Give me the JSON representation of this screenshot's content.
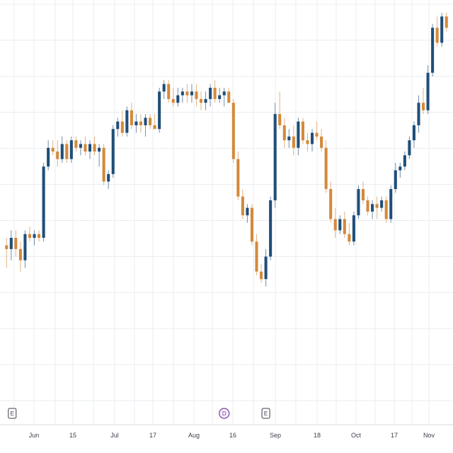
{
  "chart_data": {
    "type": "candlestick",
    "title": "",
    "xlabel": "",
    "ylabel": "",
    "grid": true,
    "x_axis": {
      "tick_labels": [
        "Jun",
        "15",
        "Jul",
        "17",
        "Aug",
        "16",
        "Sep",
        "18",
        "Oct",
        "17",
        "Nov"
      ]
    },
    "ylim": [
      0,
      100
    ],
    "colors": {
      "up": "#1f4e79",
      "down": "#d4893a",
      "wick_up": "#6f8fae",
      "wick_down": "#e2b27f",
      "grid": "#e9ecf1",
      "axis_text": "#3a3f4b",
      "dividend_marker": "#7b3fa0",
      "earnings_marker": "#3a3f4b"
    },
    "candles": [
      {
        "o": 38,
        "h": 40,
        "l": 32,
        "c": 37
      },
      {
        "o": 37,
        "h": 42,
        "l": 34,
        "c": 40
      },
      {
        "o": 40,
        "h": 42,
        "l": 35,
        "c": 37
      },
      {
        "o": 37,
        "h": 39,
        "l": 31,
        "c": 34
      },
      {
        "o": 34,
        "h": 42,
        "l": 32,
        "c": 41
      },
      {
        "o": 41,
        "h": 43,
        "l": 39,
        "c": 40
      },
      {
        "o": 40,
        "h": 42,
        "l": 38,
        "c": 41
      },
      {
        "o": 41,
        "h": 42,
        "l": 39,
        "c": 40
      },
      {
        "o": 40,
        "h": 60,
        "l": 39,
        "c": 59
      },
      {
        "o": 59,
        "h": 66,
        "l": 58,
        "c": 64
      },
      {
        "o": 64,
        "h": 66,
        "l": 62,
        "c": 63
      },
      {
        "o": 63,
        "h": 66,
        "l": 59,
        "c": 61
      },
      {
        "o": 61,
        "h": 67,
        "l": 60,
        "c": 65
      },
      {
        "o": 65,
        "h": 66,
        "l": 60,
        "c": 61
      },
      {
        "o": 61,
        "h": 67,
        "l": 60,
        "c": 66
      },
      {
        "o": 66,
        "h": 67,
        "l": 63,
        "c": 64
      },
      {
        "o": 64,
        "h": 66,
        "l": 62,
        "c": 65
      },
      {
        "o": 65,
        "h": 67,
        "l": 62,
        "c": 63
      },
      {
        "o": 63,
        "h": 66,
        "l": 61,
        "c": 65
      },
      {
        "o": 65,
        "h": 67,
        "l": 62,
        "c": 63
      },
      {
        "o": 63,
        "h": 65,
        "l": 59,
        "c": 64
      },
      {
        "o": 64,
        "h": 65,
        "l": 54,
        "c": 55
      },
      {
        "o": 55,
        "h": 58,
        "l": 53,
        "c": 57
      },
      {
        "o": 57,
        "h": 70,
        "l": 56,
        "c": 69
      },
      {
        "o": 69,
        "h": 72,
        "l": 67,
        "c": 71
      },
      {
        "o": 71,
        "h": 74,
        "l": 67,
        "c": 68
      },
      {
        "o": 68,
        "h": 75,
        "l": 67,
        "c": 74
      },
      {
        "o": 74,
        "h": 76,
        "l": 69,
        "c": 70
      },
      {
        "o": 70,
        "h": 73,
        "l": 68,
        "c": 71
      },
      {
        "o": 71,
        "h": 73,
        "l": 68,
        "c": 70
      },
      {
        "o": 70,
        "h": 73,
        "l": 67,
        "c": 72
      },
      {
        "o": 72,
        "h": 73,
        "l": 69,
        "c": 70
      },
      {
        "o": 70,
        "h": 73,
        "l": 69,
        "c": 69
      },
      {
        "o": 69,
        "h": 80,
        "l": 68,
        "c": 79
      },
      {
        "o": 79,
        "h": 82,
        "l": 77,
        "c": 81
      },
      {
        "o": 81,
        "h": 82,
        "l": 76,
        "c": 77
      },
      {
        "o": 77,
        "h": 80,
        "l": 75,
        "c": 76
      },
      {
        "o": 76,
        "h": 80,
        "l": 75,
        "c": 78
      },
      {
        "o": 78,
        "h": 80,
        "l": 76,
        "c": 79
      },
      {
        "o": 79,
        "h": 81,
        "l": 76,
        "c": 78
      },
      {
        "o": 78,
        "h": 81,
        "l": 76,
        "c": 79
      },
      {
        "o": 79,
        "h": 81,
        "l": 75,
        "c": 77
      },
      {
        "o": 77,
        "h": 79,
        "l": 74,
        "c": 76
      },
      {
        "o": 76,
        "h": 79,
        "l": 74,
        "c": 77
      },
      {
        "o": 77,
        "h": 81,
        "l": 75,
        "c": 80
      },
      {
        "o": 80,
        "h": 82,
        "l": 76,
        "c": 77
      },
      {
        "o": 77,
        "h": 80,
        "l": 76,
        "c": 78
      },
      {
        "o": 78,
        "h": 80,
        "l": 75,
        "c": 79
      },
      {
        "o": 79,
        "h": 80,
        "l": 76,
        "c": 76
      },
      {
        "o": 76,
        "h": 77,
        "l": 60,
        "c": 61
      },
      {
        "o": 61,
        "h": 63,
        "l": 50,
        "c": 51
      },
      {
        "o": 51,
        "h": 53,
        "l": 45,
        "c": 46
      },
      {
        "o": 46,
        "h": 49,
        "l": 44,
        "c": 48
      },
      {
        "o": 48,
        "h": 49,
        "l": 38,
        "c": 39
      },
      {
        "o": 39,
        "h": 41,
        "l": 30,
        "c": 31
      },
      {
        "o": 31,
        "h": 33,
        "l": 28,
        "c": 29
      },
      {
        "o": 29,
        "h": 37,
        "l": 27,
        "c": 35
      },
      {
        "o": 35,
        "h": 51,
        "l": 34,
        "c": 50
      },
      {
        "o": 50,
        "h": 76,
        "l": 48,
        "c": 73
      },
      {
        "o": 73,
        "h": 79,
        "l": 69,
        "c": 70
      },
      {
        "o": 70,
        "h": 72,
        "l": 64,
        "c": 66
      },
      {
        "o": 66,
        "h": 69,
        "l": 64,
        "c": 67
      },
      {
        "o": 67,
        "h": 70,
        "l": 62,
        "c": 64
      },
      {
        "o": 64,
        "h": 72,
        "l": 62,
        "c": 71
      },
      {
        "o": 71,
        "h": 72,
        "l": 65,
        "c": 66
      },
      {
        "o": 66,
        "h": 68,
        "l": 63,
        "c": 65
      },
      {
        "o": 65,
        "h": 69,
        "l": 63,
        "c": 68
      },
      {
        "o": 68,
        "h": 71,
        "l": 66,
        "c": 67
      },
      {
        "o": 67,
        "h": 69,
        "l": 63,
        "c": 64
      },
      {
        "o": 64,
        "h": 66,
        "l": 52,
        "c": 53
      },
      {
        "o": 53,
        "h": 55,
        "l": 44,
        "c": 45
      },
      {
        "o": 45,
        "h": 48,
        "l": 40,
        "c": 42
      },
      {
        "o": 42,
        "h": 46,
        "l": 41,
        "c": 45
      },
      {
        "o": 45,
        "h": 47,
        "l": 40,
        "c": 41
      },
      {
        "o": 41,
        "h": 44,
        "l": 38,
        "c": 39
      },
      {
        "o": 39,
        "h": 47,
        "l": 38,
        "c": 46
      },
      {
        "o": 46,
        "h": 54,
        "l": 45,
        "c": 53
      },
      {
        "o": 53,
        "h": 55,
        "l": 49,
        "c": 50
      },
      {
        "o": 50,
        "h": 51,
        "l": 46,
        "c": 47
      },
      {
        "o": 47,
        "h": 50,
        "l": 45,
        "c": 49
      },
      {
        "o": 49,
        "h": 51,
        "l": 45,
        "c": 48
      },
      {
        "o": 48,
        "h": 51,
        "l": 47,
        "c": 50
      },
      {
        "o": 50,
        "h": 51,
        "l": 44,
        "c": 45
      },
      {
        "o": 45,
        "h": 54,
        "l": 44,
        "c": 53
      },
      {
        "o": 53,
        "h": 60,
        "l": 52,
        "c": 58
      },
      {
        "o": 58,
        "h": 60,
        "l": 56,
        "c": 59
      },
      {
        "o": 59,
        "h": 63,
        "l": 58,
        "c": 62
      },
      {
        "o": 62,
        "h": 67,
        "l": 61,
        "c": 66
      },
      {
        "o": 66,
        "h": 71,
        "l": 64,
        "c": 70
      },
      {
        "o": 70,
        "h": 78,
        "l": 68,
        "c": 76
      },
      {
        "o": 76,
        "h": 80,
        "l": 73,
        "c": 74
      },
      {
        "o": 74,
        "h": 86,
        "l": 73,
        "c": 84
      },
      {
        "o": 84,
        "h": 97,
        "l": 83,
        "c": 96
      },
      {
        "o": 96,
        "h": 99,
        "l": 91,
        "c": 92
      },
      {
        "o": 92,
        "h": 100,
        "l": 91,
        "c": 99
      },
      {
        "o": 99,
        "h": 100,
        "l": 95,
        "c": 96
      }
    ],
    "events": [
      {
        "type": "earnings",
        "label": "E",
        "candle_index": 0
      },
      {
        "type": "dividend",
        "label": "D",
        "candle_index": 47
      },
      {
        "type": "earnings",
        "label": "E",
        "candle_index": 56
      }
    ]
  }
}
